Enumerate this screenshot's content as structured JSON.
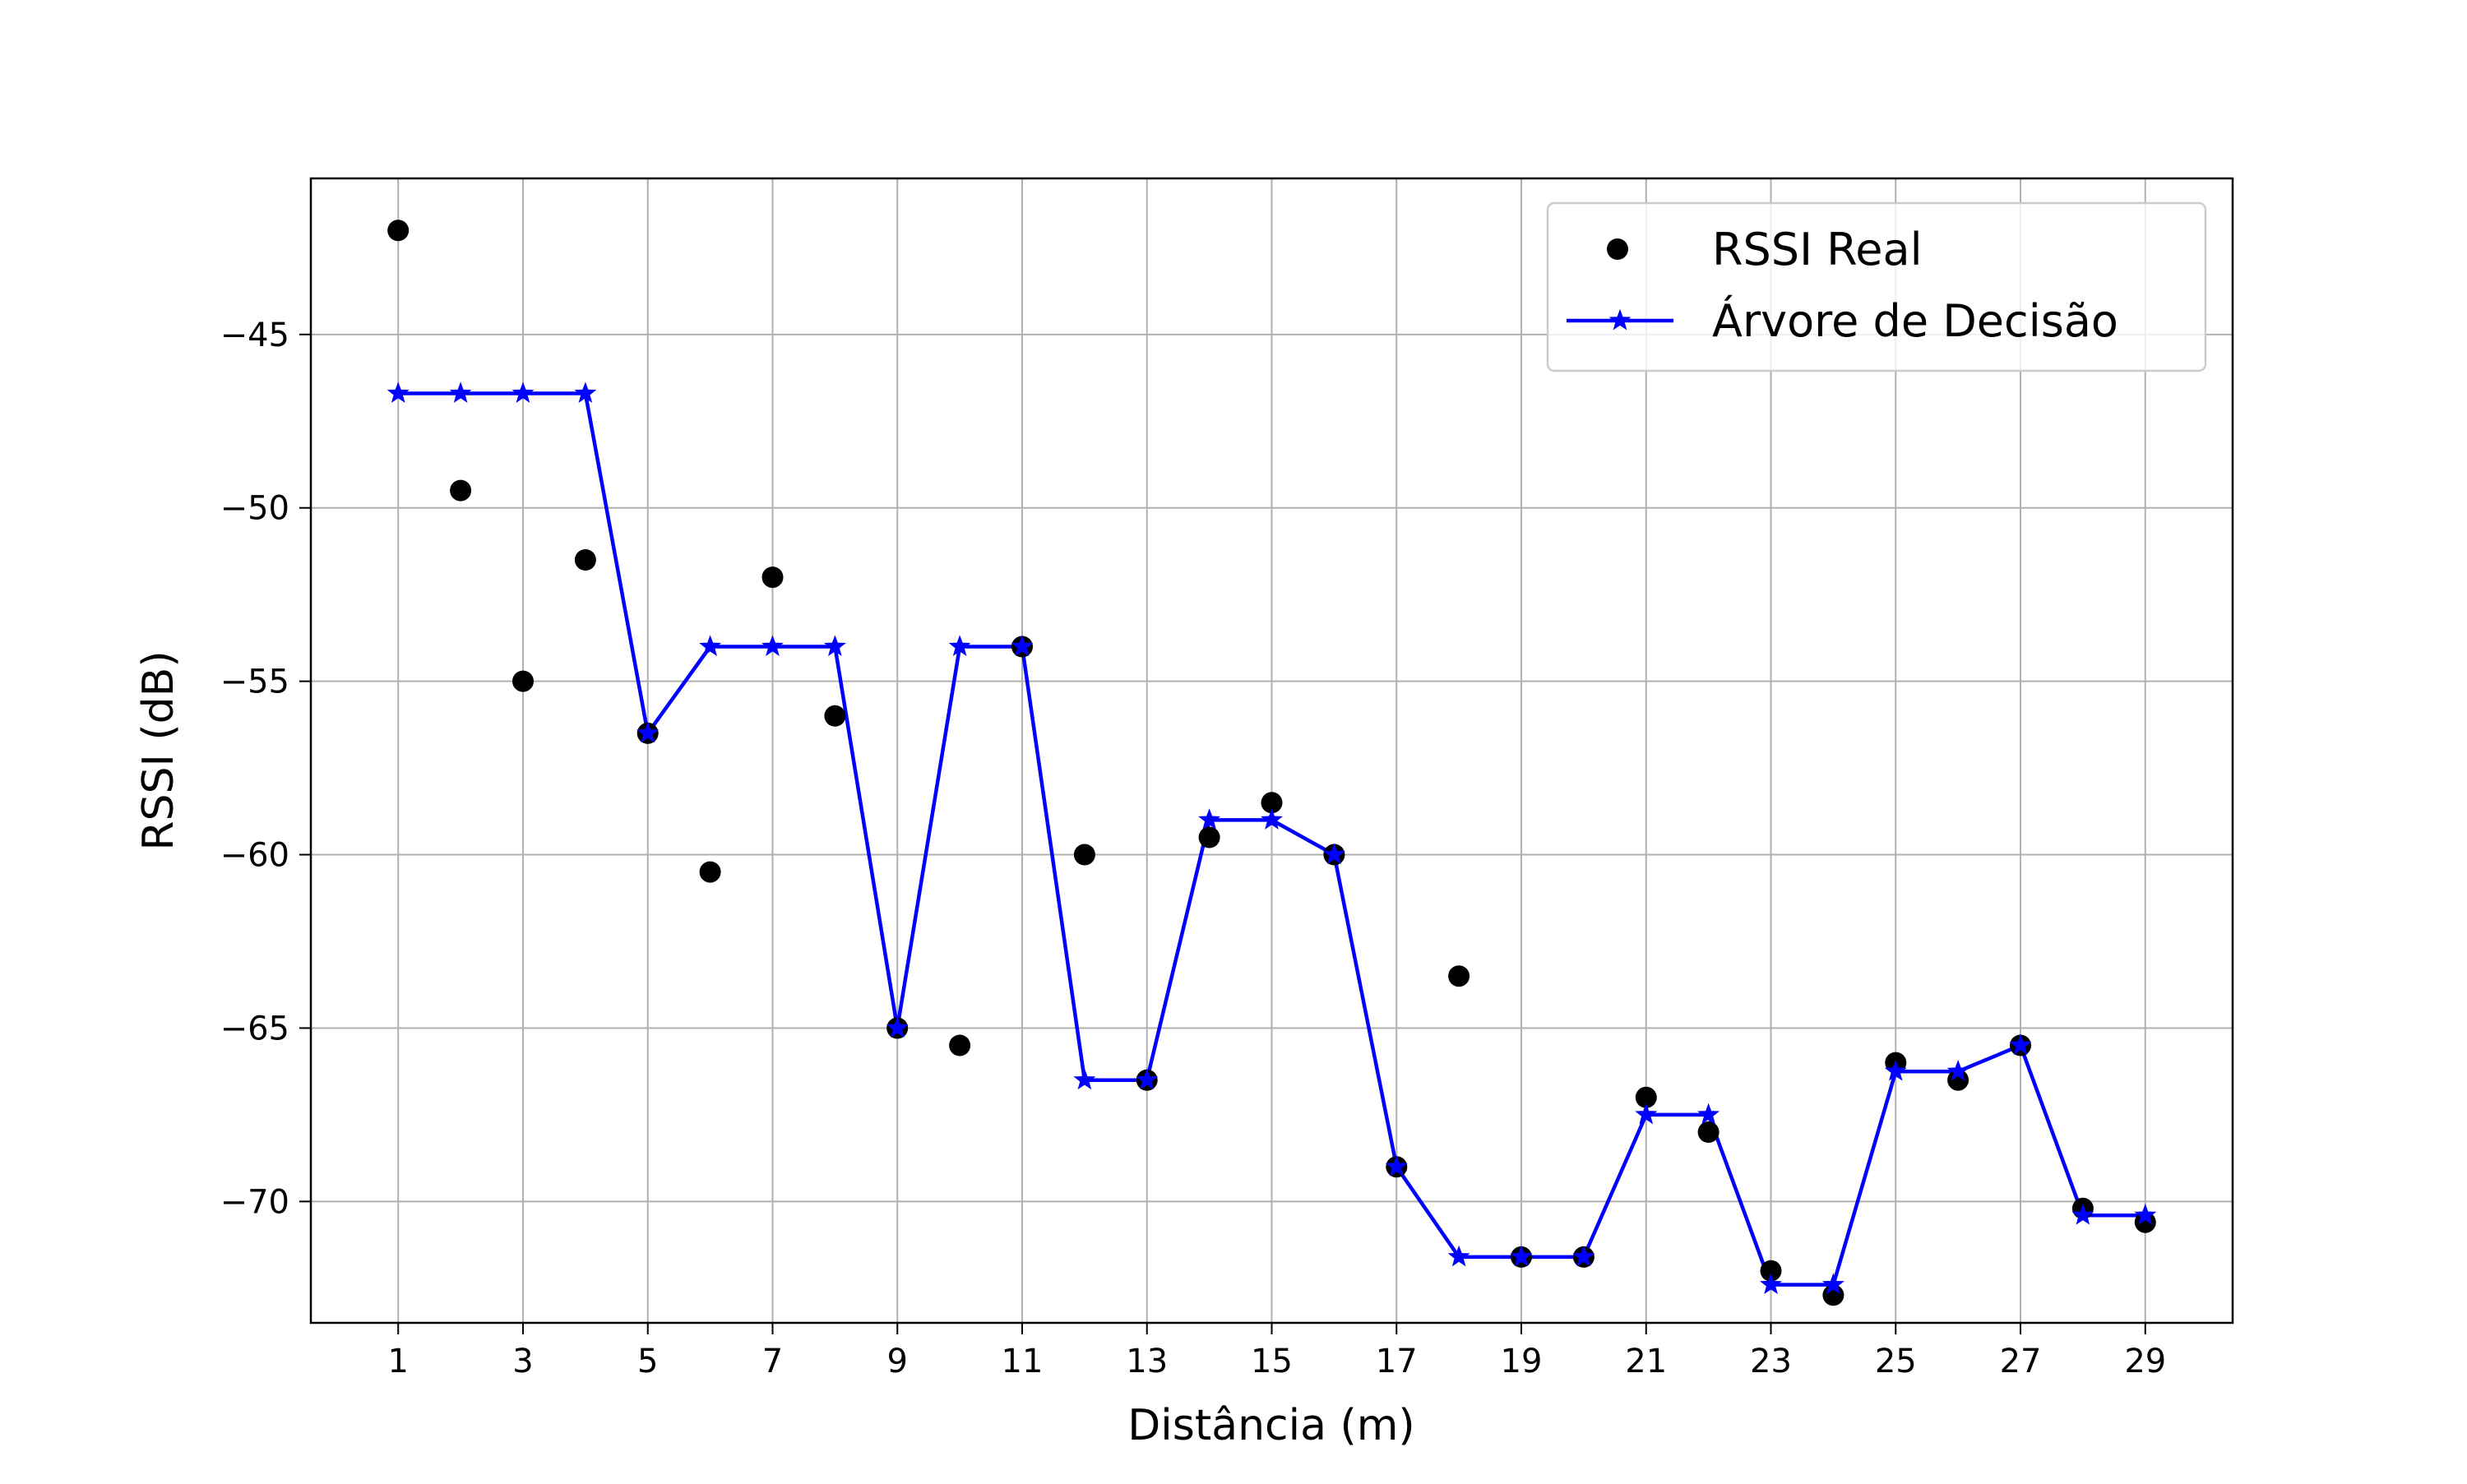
{
  "chart_data": {
    "type": "line",
    "xlabel": "Distância (m)",
    "ylabel": "RSSI (dB)",
    "xlim": [
      -0.4,
      30.4
    ],
    "ylim": [
      -73.5,
      -40.5
    ],
    "x_ticks": [
      1,
      3,
      5,
      7,
      9,
      11,
      13,
      15,
      17,
      19,
      21,
      23,
      25,
      27,
      29
    ],
    "y_ticks": [
      -70,
      -65,
      -60,
      -55,
      -50,
      -45
    ],
    "y_tick_labels": [
      "−70",
      "−65",
      "−60",
      "−55",
      "−50",
      "−45"
    ],
    "grid": true,
    "legend_position": "top-right",
    "x": [
      1,
      2,
      3,
      4,
      5,
      6,
      7,
      8,
      9,
      10,
      11,
      12,
      13,
      14,
      15,
      16,
      17,
      18,
      19,
      20,
      21,
      22,
      23,
      24,
      25,
      26,
      27,
      28,
      29
    ],
    "series": [
      {
        "name": "RSSI Real",
        "kind": "scatter",
        "color": "#000000",
        "values": [
          -42,
          -49.5,
          -55,
          -51.5,
          -56.5,
          -60.5,
          -52,
          -56,
          -65,
          -65.5,
          -54,
          -60,
          -66.5,
          -59.5,
          -58.5,
          -60,
          -69,
          -63.5,
          -71.6,
          -71.6,
          -67,
          -68,
          -72,
          -72.7,
          -66,
          -66.5,
          -65.5,
          -70.2,
          -70.6
        ]
      },
      {
        "name": "Árvore de Decisão",
        "kind": "line",
        "marker": "star",
        "color": "#0000ff",
        "values": [
          -46.7,
          -46.7,
          -46.7,
          -46.7,
          -56.5,
          -54,
          -54,
          -54,
          -65,
          -54,
          -54,
          -66.5,
          -66.5,
          -59,
          -59,
          -60,
          -69,
          -71.6,
          -71.6,
          -71.6,
          -67.5,
          -67.5,
          -72.4,
          -72.4,
          -66.25,
          -66.25,
          -65.5,
          -70.4,
          -70.4
        ]
      }
    ]
  }
}
